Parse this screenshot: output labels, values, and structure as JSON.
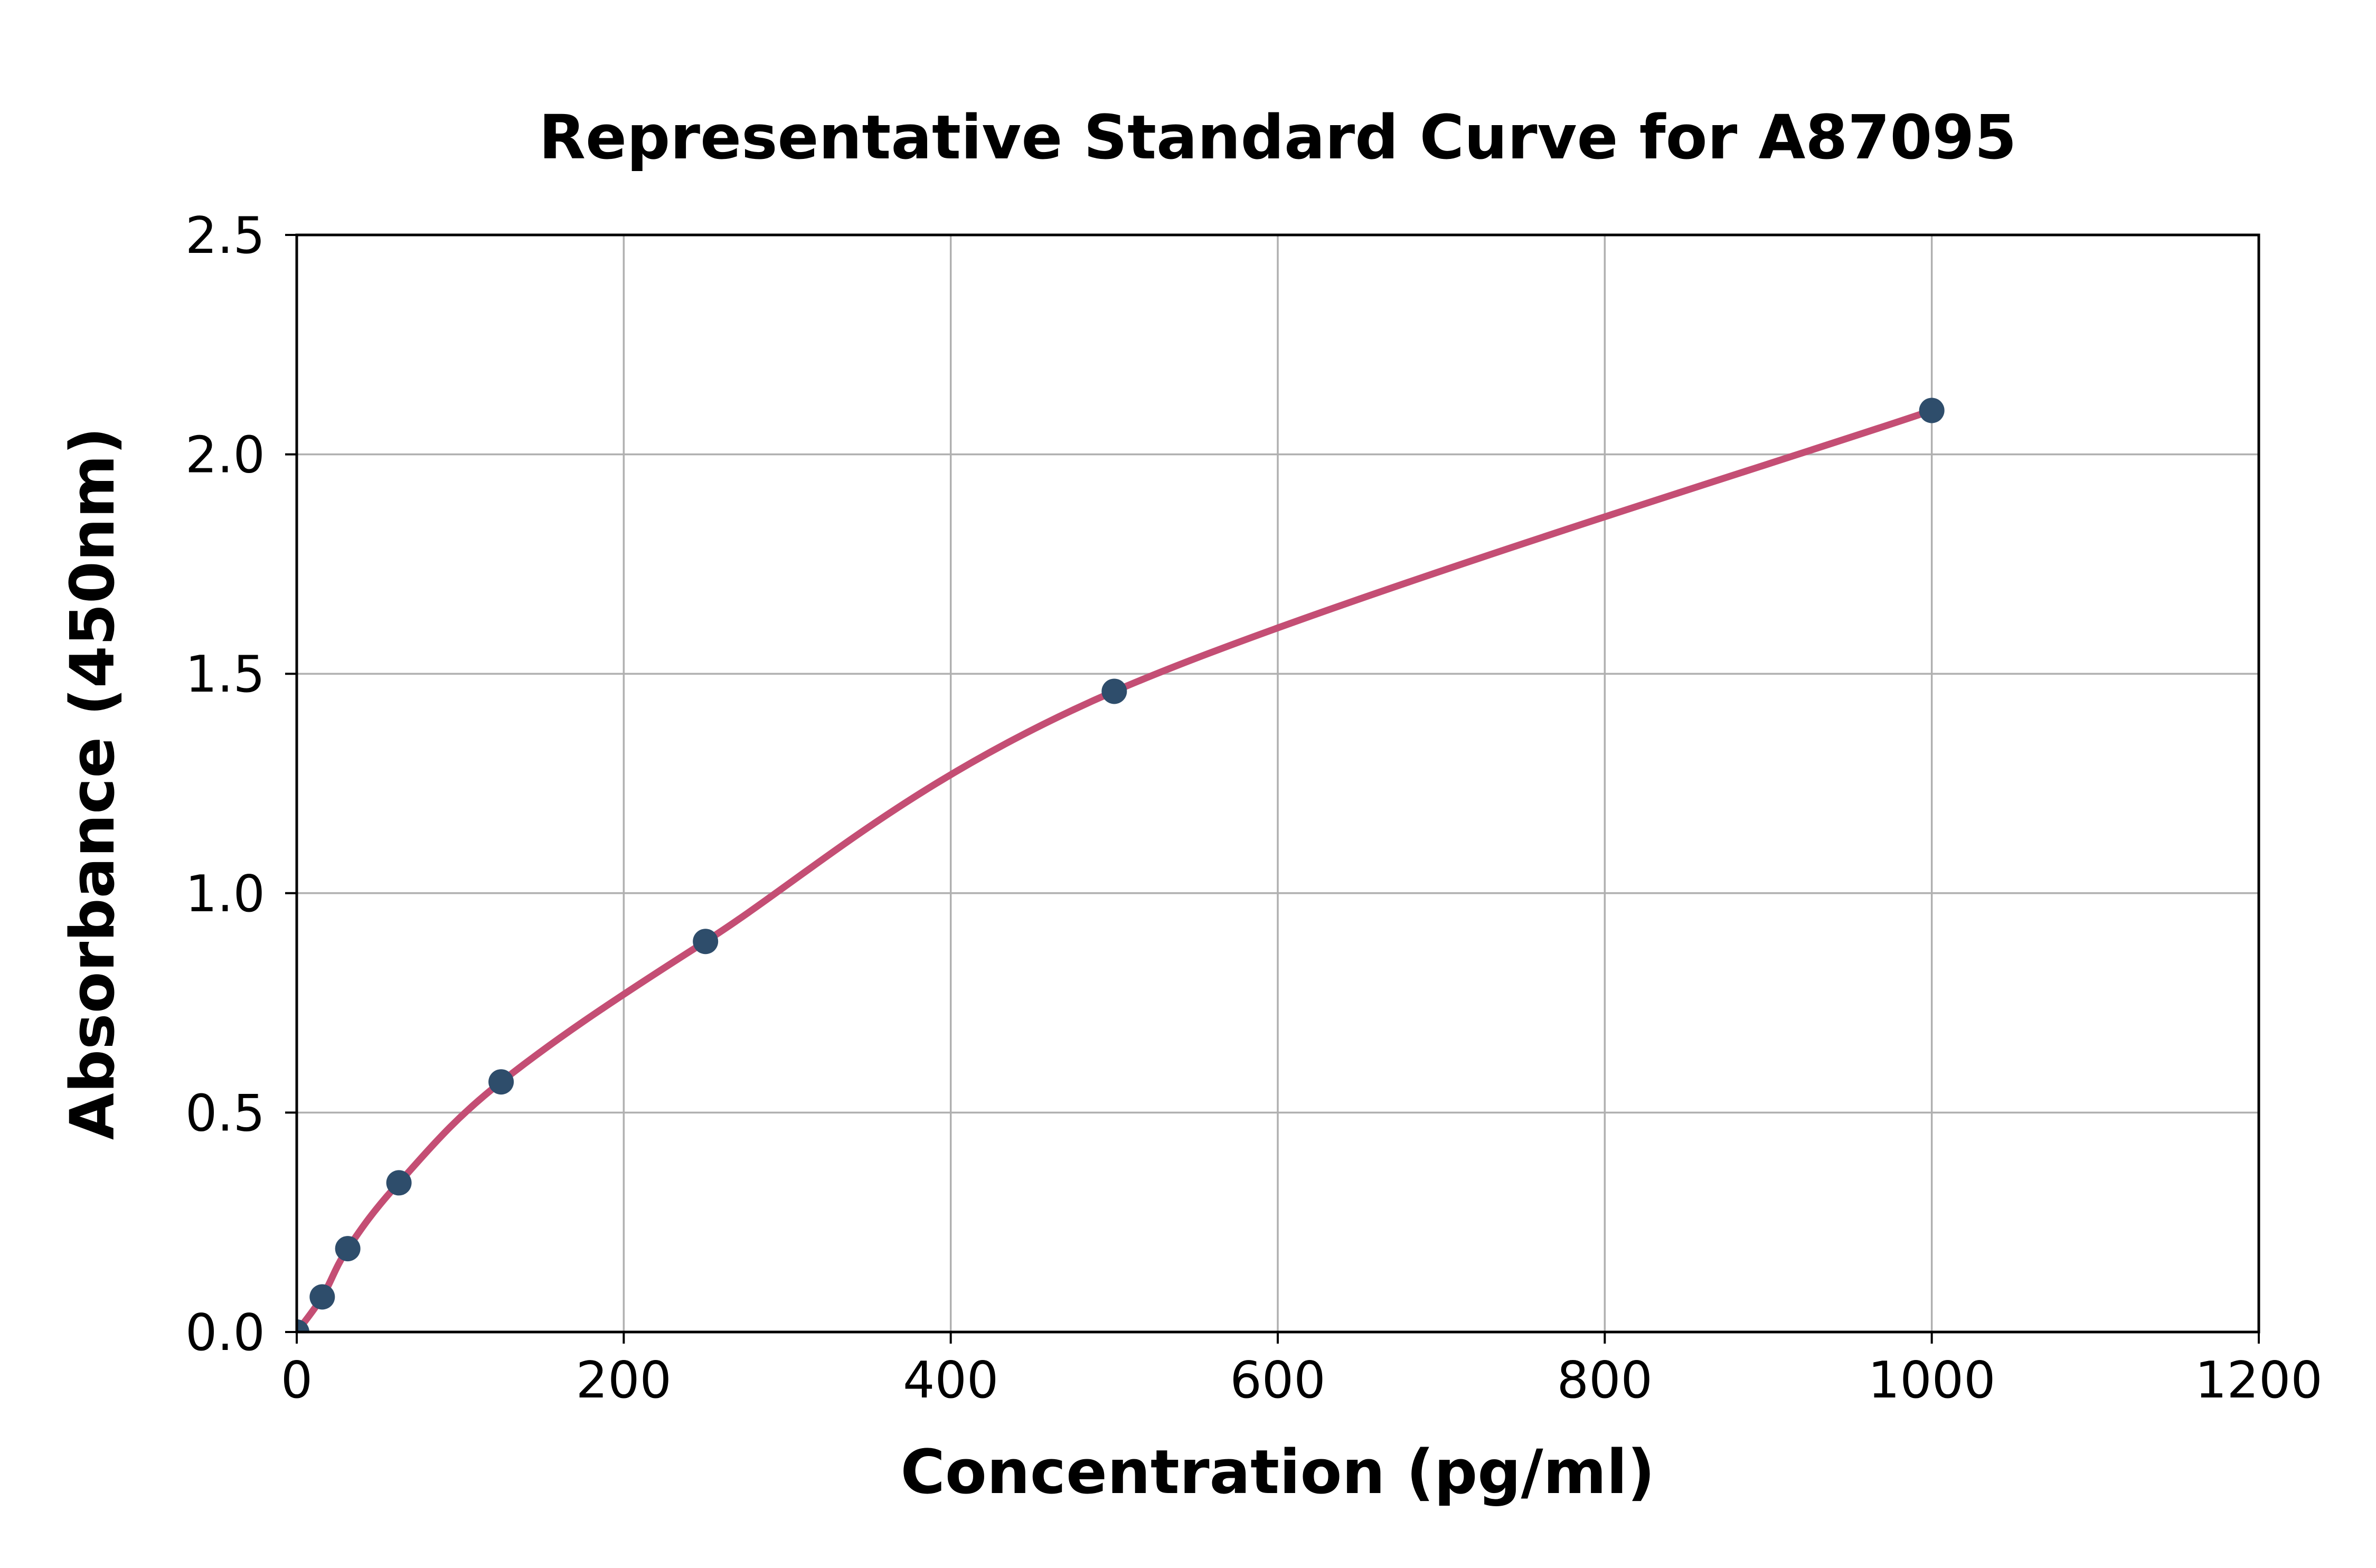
{
  "figure": {
    "title": "Representative Standard Curve for A87095",
    "background": "#ffffff"
  },
  "chart_data": {
    "type": "scatter",
    "title": "Representative Standard Curve for A87095",
    "xlabel": "Concentration (pg/ml)",
    "ylabel": "Absorbance (450nm)",
    "series": [
      {
        "name": "standard-points",
        "x": [
          0,
          15.6,
          31.2,
          62.5,
          125,
          250,
          500,
          1000
        ],
        "y": [
          0,
          0.08,
          0.19,
          0.34,
          0.57,
          0.89,
          1.46,
          2.1
        ]
      }
    ],
    "fit_curve_through_points": true,
    "xlim": [
      0,
      1200
    ],
    "ylim": [
      0,
      2.5
    ],
    "xticks": [
      0,
      200,
      400,
      600,
      800,
      1000,
      1200
    ],
    "xtick_labels": [
      "0",
      "200",
      "400",
      "600",
      "800",
      "1000",
      "1200"
    ],
    "yticks": [
      0.0,
      0.5,
      1.0,
      1.5,
      2.0,
      2.5
    ],
    "ytick_labels": [
      "0.0",
      "0.5",
      "1.0",
      "1.5",
      "2.0",
      "2.5"
    ],
    "grid": true,
    "legend_position": "none",
    "colors": {
      "curve": "#c44e74",
      "marker": "#2e4d6b",
      "grid": "#b0b0b0",
      "axis": "#000000"
    }
  }
}
